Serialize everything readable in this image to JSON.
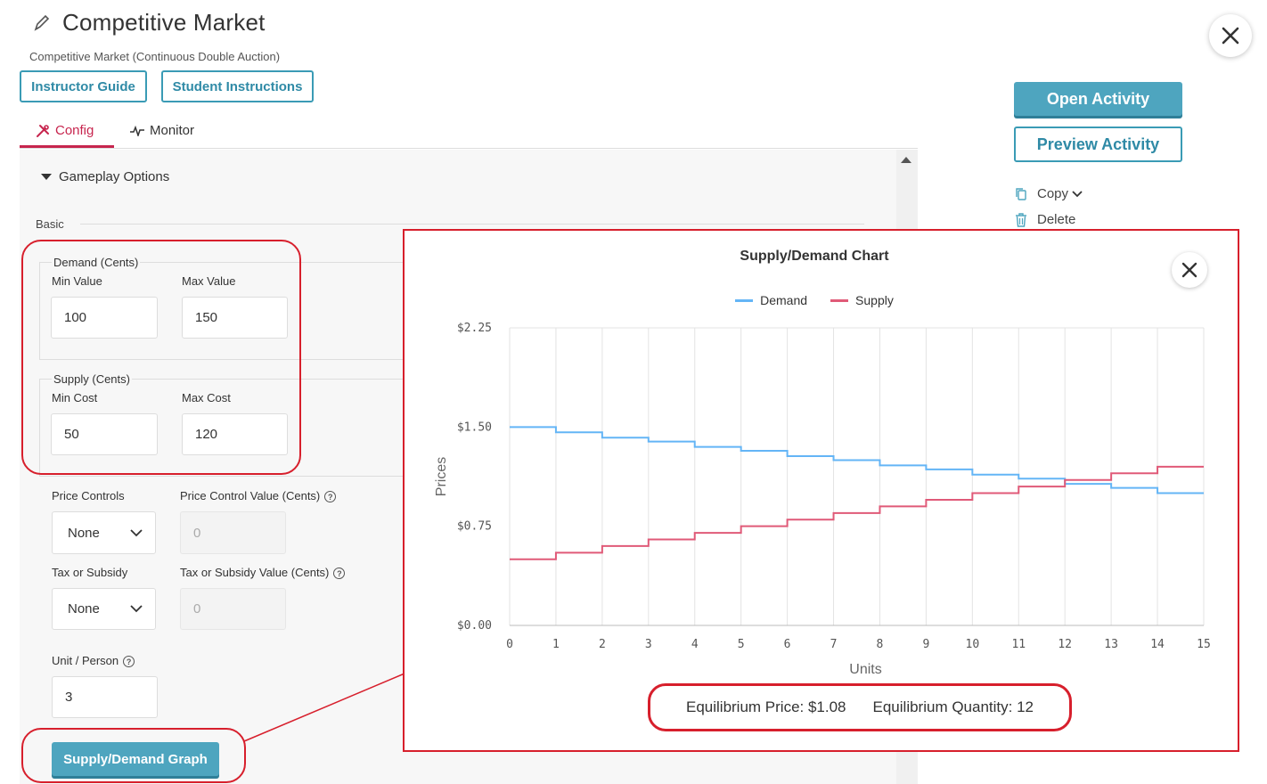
{
  "header": {
    "title": "Competitive Market",
    "subtitle": "Competitive Market (Continuous Double Auction)",
    "instructor_guide": "Instructor Guide",
    "student_instructions": "Student Instructions"
  },
  "tabs": [
    {
      "label": "Config",
      "active": true
    },
    {
      "label": "Monitor",
      "active": false
    }
  ],
  "config": {
    "section_title": "Gameplay Options",
    "basic_label": "Basic",
    "demand": {
      "legend": "Demand (Cents)",
      "min_label": "Min Value",
      "min_value": "100",
      "max_label": "Max Value",
      "max_value": "150"
    },
    "supply": {
      "legend": "Supply (Cents)",
      "min_label": "Min Cost",
      "min_value": "50",
      "max_label": "Max Cost",
      "max_value": "120"
    },
    "price_controls": {
      "label": "Price Controls",
      "value": "None"
    },
    "price_control_value": {
      "label": "Price Control Value (Cents)",
      "placeholder": "0"
    },
    "tax_subsidy": {
      "label": "Tax or Subsidy",
      "value": "None"
    },
    "tax_subsidy_value": {
      "label": "Tax or Subsidy Value (Cents)",
      "placeholder": "0"
    },
    "unit_person": {
      "label": "Unit / Person",
      "value": "3"
    },
    "graph_button": "Supply/Demand Graph"
  },
  "sidebar": {
    "open_activity": "Open Activity",
    "preview_activity": "Preview Activity",
    "copy": "Copy",
    "delete": "Delete"
  },
  "colors": {
    "accent": "#4ea5bf",
    "tab_active": "#c7254e",
    "annotation": "#d71f2c",
    "demand": "#64b5f6",
    "supply": "#e05a78"
  },
  "chart_data": {
    "type": "line",
    "title": "Supply/Demand Chart",
    "xlabel": "Units",
    "ylabel": "Prices",
    "xlim": [
      0,
      15
    ],
    "ylim": [
      0,
      2.25
    ],
    "x_ticks": [
      "0",
      "1",
      "2",
      "3",
      "4",
      "5",
      "6",
      "7",
      "8",
      "9",
      "10",
      "11",
      "12",
      "13",
      "14",
      "15"
    ],
    "y_ticks": [
      {
        "value": 0,
        "label": "$0.00"
      },
      {
        "value": 0.75,
        "label": "$0.75"
      },
      {
        "value": 1.5,
        "label": "$1.50"
      },
      {
        "value": 2.25,
        "label": "$2.25"
      }
    ],
    "grid": true,
    "legend_position": "top",
    "step": true,
    "series": [
      {
        "name": "Demand",
        "color": "#64b5f6",
        "values": [
          1.5,
          1.46,
          1.42,
          1.39,
          1.35,
          1.32,
          1.28,
          1.25,
          1.21,
          1.18,
          1.14,
          1.11,
          1.07,
          1.04,
          1.0
        ]
      },
      {
        "name": "Supply",
        "color": "#e05a78",
        "values": [
          0.5,
          0.55,
          0.6,
          0.65,
          0.7,
          0.75,
          0.8,
          0.85,
          0.9,
          0.95,
          1.0,
          1.05,
          1.1,
          1.15,
          1.2
        ]
      }
    ],
    "equilibrium": {
      "price_text": "Equilibrium Price: $1.08",
      "quantity_text": "Equilibrium Quantity: 12"
    }
  }
}
